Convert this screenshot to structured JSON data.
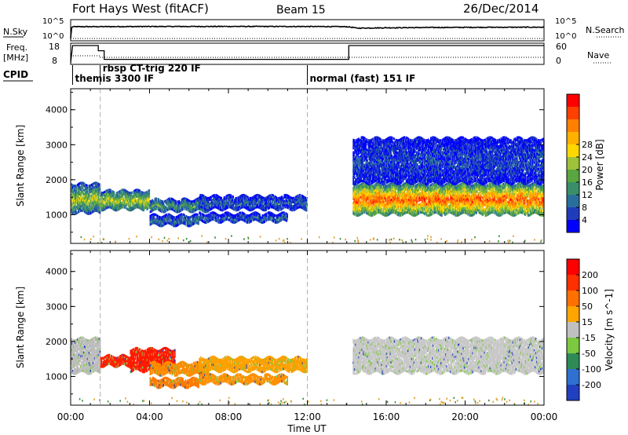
{
  "header": {
    "title": "Fort Hays West (fitACF)",
    "beam": "Beam 15",
    "date": "26/Dec/2014"
  },
  "status_panels": {
    "left_labels": {
      "nsky": "N.Sky",
      "freq_line1": "Freq.",
      "freq_line2": "[MHz]",
      "cpid": "CPID"
    },
    "right_labels": {
      "nsearch": "N.Search",
      "nave": "Nave"
    },
    "noise_ticks": [
      "10^5",
      "10^0"
    ],
    "noise_ticks_right": [
      "10^5",
      "10^0"
    ],
    "freq_ticks": [
      "18",
      "8"
    ],
    "nave_ticks": [
      "60",
      "0"
    ]
  },
  "cpid_labels": [
    {
      "text": "themis 3300 IF",
      "start_hour": 0.1
    },
    {
      "text": "rbsp CT-trig 220 IF",
      "start_hour": 1.5
    },
    {
      "text": "normal (fast) 151 IF",
      "start_hour": 12.0
    }
  ],
  "chart_data": [
    {
      "type": "line",
      "name": "noise",
      "x_unit": "hours UT",
      "series": [
        {
          "name": "N.Sky",
          "x": [
            0,
            0.1,
            2,
            4,
            6,
            8,
            10,
            12,
            13,
            14,
            14.5,
            16,
            18,
            20,
            22,
            24
          ],
          "values": [
            2,
            3000,
            3200,
            3400,
            3500,
            3600,
            3500,
            3400,
            3300,
            3000,
            1200,
            1500,
            1800,
            2000,
            2100,
            2200
          ]
        },
        {
          "name": "N.Search",
          "x": [
            0,
            24
          ],
          "values": [
            1,
            1
          ]
        }
      ],
      "ylim": [
        1,
        100000
      ],
      "scale": "log"
    },
    {
      "type": "line",
      "name": "frequency",
      "series": [
        {
          "name": "Freq.",
          "x": [
            0,
            0.1,
            1.4,
            1.4,
            1.7,
            1.7,
            14.1,
            14.1,
            24
          ],
          "values": [
            8,
            18,
            18,
            15,
            15,
            10,
            10,
            18,
            18
          ],
          "unit": "MHz"
        },
        {
          "name": "Nave",
          "x": [
            0,
            1.5,
            1.5,
            24
          ],
          "values": [
            15,
            15,
            12,
            12
          ]
        }
      ],
      "ylim": [
        8,
        18
      ]
    },
    {
      "type": "heatmap",
      "name": "power",
      "ylabel": "Slant Range [km]",
      "yticks": [
        1000,
        2000,
        3000,
        4000
      ],
      "ylim": [
        180,
        4600
      ],
      "colorbar": {
        "label": "Power [dB]",
        "ticks": [
          4,
          8,
          12,
          16,
          20,
          24,
          28
        ],
        "colors": [
          "#0000ff",
          "#1f3dbb",
          "#2a6f9c",
          "#3a8f6a",
          "#5aa640",
          "#9ec23a",
          "#ffd700",
          "#ffb000",
          "#ff8000",
          "#ff4000",
          "#ff0000"
        ]
      },
      "bands": [
        {
          "t0": 0.0,
          "t1": 1.5,
          "r0": 1050,
          "r1": 1900,
          "level": 0.5
        },
        {
          "t0": 1.5,
          "t1": 4.0,
          "r0": 1150,
          "r1": 1700,
          "level": 0.55
        },
        {
          "t0": 4.0,
          "t1": 7.0,
          "r0": 1100,
          "r1": 1450,
          "level": 0.35
        },
        {
          "t0": 4.0,
          "t1": 6.5,
          "r0": 700,
          "r1": 1000,
          "level": 0.25
        },
        {
          "t0": 6.5,
          "t1": 12.0,
          "r0": 1150,
          "r1": 1550,
          "level": 0.2
        },
        {
          "t0": 6.5,
          "t1": 11.0,
          "r0": 800,
          "r1": 1050,
          "level": 0.2
        },
        {
          "t0": 14.3,
          "t1": 24.0,
          "r0": 1000,
          "r1": 1900,
          "level": 0.85
        },
        {
          "t0": 14.3,
          "t1": 24.0,
          "r0": 1900,
          "r1": 3200,
          "level": 0.15
        }
      ]
    },
    {
      "type": "heatmap",
      "name": "velocity",
      "ylabel": "Slant Range [km]",
      "yticks": [
        1000,
        2000,
        3000,
        4000
      ],
      "ylim": [
        180,
        4600
      ],
      "colorbar": {
        "label": "Velocity [m s^-1]",
        "ticks": [
          "200",
          "100",
          "50",
          "15",
          "-15",
          "-50",
          "-100",
          "-200"
        ],
        "colors": [
          "#2040c0",
          "#3070d0",
          "#2e8b57",
          "#7cc840",
          "#c0c0c0",
          "#ffa500",
          "#ff7000",
          "#ff3000",
          "#ff0000"
        ]
      },
      "bands": [
        {
          "t0": 0.0,
          "t1": 1.5,
          "r0": 1100,
          "r1": 2100,
          "color": "#bdbdbd"
        },
        {
          "t0": 1.5,
          "t1": 3.0,
          "r0": 1300,
          "r1": 1600,
          "color": "#ff2200"
        },
        {
          "t0": 3.0,
          "t1": 5.3,
          "r0": 1150,
          "r1": 1800,
          "color": "#ff1a00"
        },
        {
          "t0": 4.0,
          "t1": 7.0,
          "r0": 1050,
          "r1": 1400,
          "color": "#ff8c00"
        },
        {
          "t0": 4.0,
          "t1": 6.5,
          "r0": 700,
          "r1": 950,
          "color": "#ff7a00"
        },
        {
          "t0": 6.5,
          "t1": 12.0,
          "r0": 1150,
          "r1": 1550,
          "color": "#ffa000"
        },
        {
          "t0": 6.5,
          "t1": 11.0,
          "r0": 800,
          "r1": 1050,
          "color": "#ff9000"
        },
        {
          "t0": 14.3,
          "t1": 24.0,
          "r0": 1100,
          "r1": 2100,
          "color": "#c8c8c8"
        }
      ]
    }
  ],
  "x_axis": {
    "label": "Time UT",
    "ticks": [
      "00:00",
      "04:00",
      "08:00",
      "12:00",
      "16:00",
      "20:00",
      "00:00"
    ]
  }
}
